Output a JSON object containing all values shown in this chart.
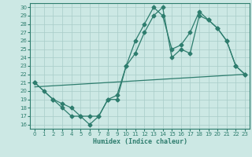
{
  "xlabel": "Humidex (Indice chaleur)",
  "bg_color": "#cce8e4",
  "grid_color": "#a8ccc8",
  "line_color": "#2e7d6e",
  "xlim": [
    -0.5,
    23.5
  ],
  "ylim": [
    15.5,
    30.5
  ],
  "xticks": [
    0,
    1,
    2,
    3,
    4,
    5,
    6,
    7,
    8,
    9,
    10,
    11,
    12,
    13,
    14,
    15,
    16,
    17,
    18,
    19,
    20,
    21,
    22,
    23
  ],
  "yticks": [
    16,
    17,
    18,
    19,
    20,
    21,
    22,
    23,
    24,
    25,
    26,
    27,
    28,
    29,
    30
  ],
  "line1_x": [
    0,
    1,
    2,
    3,
    4,
    5,
    6,
    7,
    8,
    9,
    10,
    11,
    12,
    13,
    14,
    15,
    16,
    17,
    18,
    19,
    20,
    21,
    22,
    23
  ],
  "line1_y": [
    21,
    20,
    19,
    18,
    17,
    17,
    16,
    17,
    19,
    19,
    23,
    24.5,
    27,
    29,
    30,
    24,
    25,
    24.5,
    29,
    28.5,
    27.5,
    26,
    23,
    22
  ],
  "line2_x": [
    0,
    2,
    3,
    4,
    5,
    6,
    7,
    8,
    9,
    10,
    11,
    12,
    13,
    14,
    15,
    16,
    17,
    18,
    19,
    20,
    21,
    22,
    23
  ],
  "line2_y": [
    21,
    19,
    18.5,
    18,
    17,
    17,
    17,
    19,
    19.5,
    23,
    26,
    28,
    30,
    29,
    25,
    25.5,
    27,
    29.5,
    28.5,
    27.5,
    26,
    23,
    22
  ],
  "line3_x": [
    0,
    23
  ],
  "line3_y": [
    20.5,
    22
  ]
}
